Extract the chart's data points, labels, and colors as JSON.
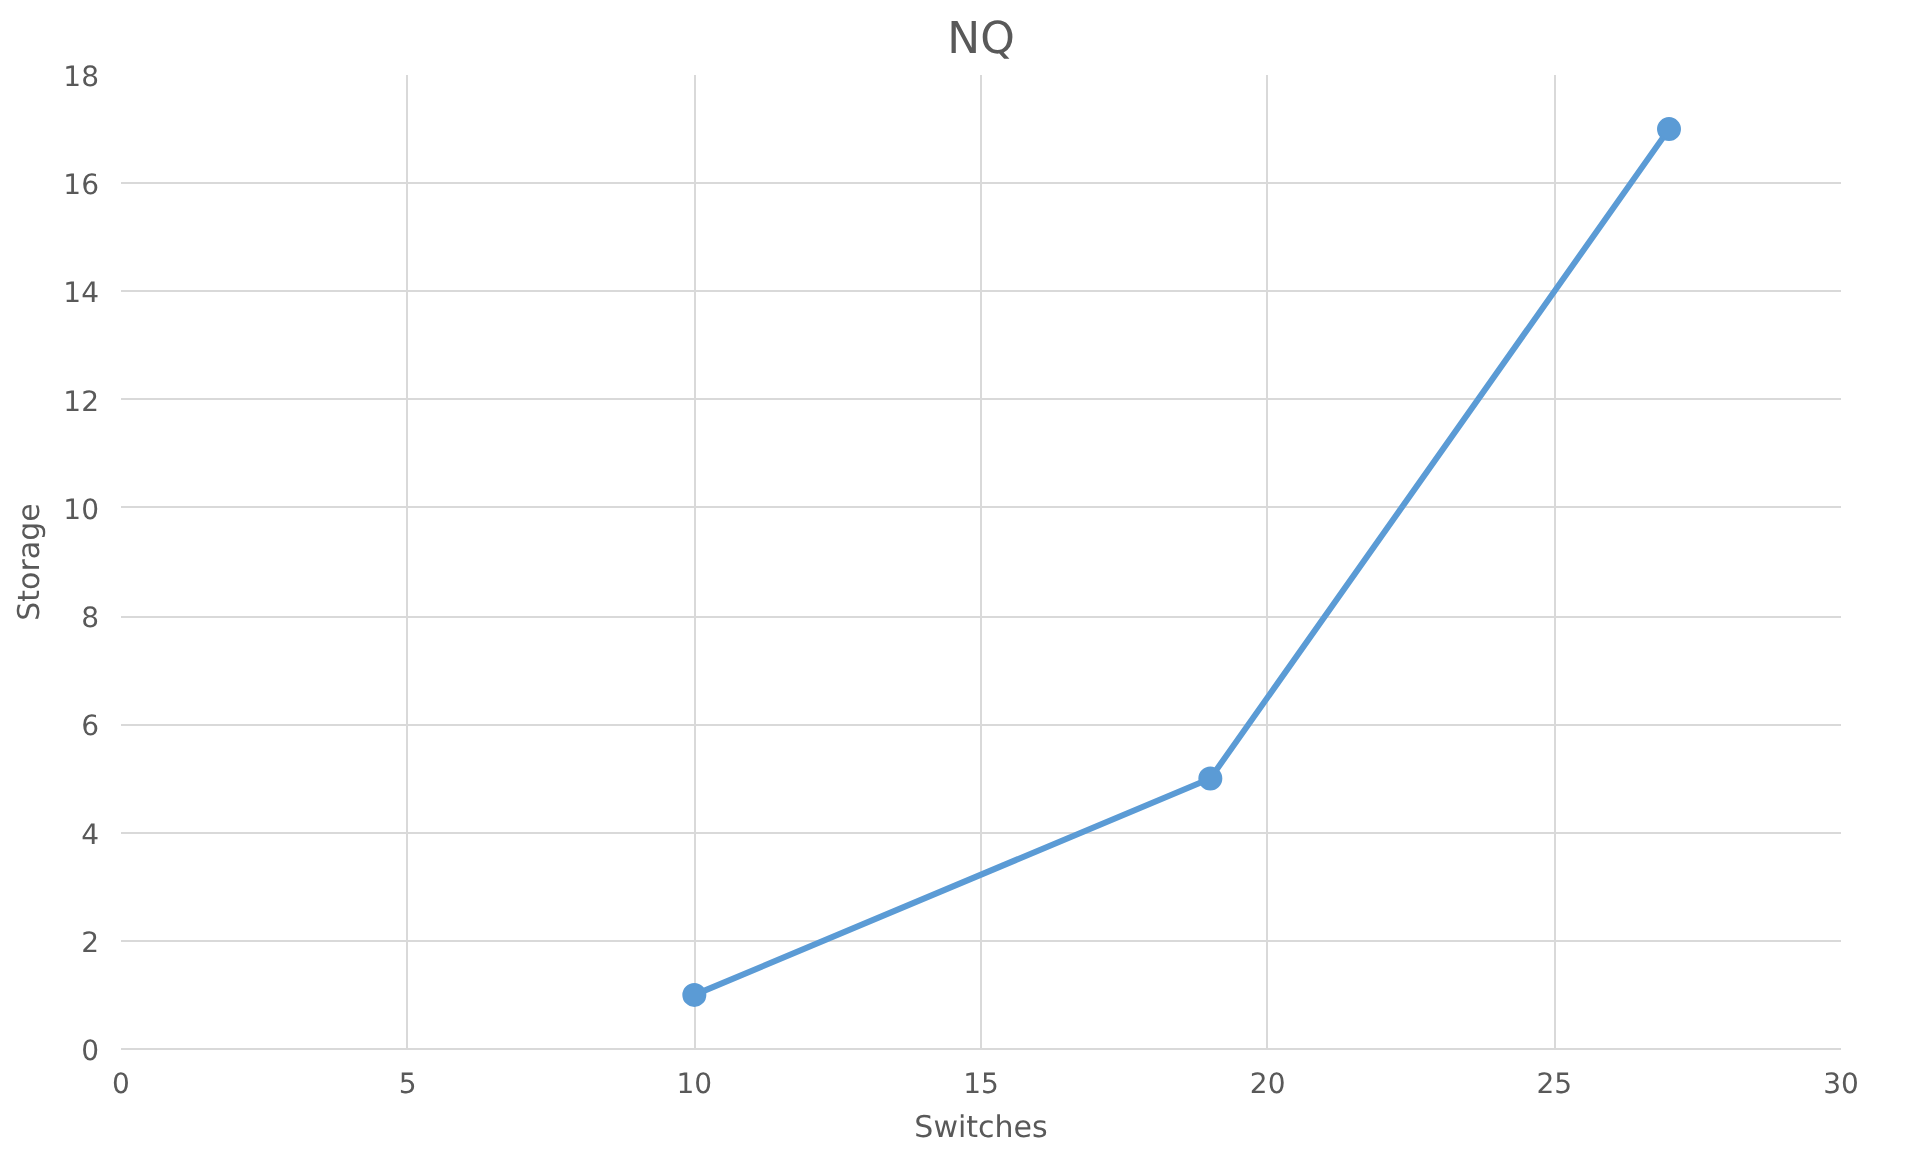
{
  "chart_data": {
    "type": "line",
    "title": "NQ",
    "xlabel": "Switches",
    "ylabel": "Storage",
    "x": [
      10,
      19,
      27
    ],
    "series": [
      {
        "color": "#5b9bd5",
        "values": [
          1,
          5,
          17
        ]
      }
    ],
    "xlim": [
      0,
      30
    ],
    "xticks": [
      0,
      5,
      10,
      15,
      20,
      25,
      30
    ],
    "ylim": [
      0,
      18
    ],
    "yticks": [
      0,
      2,
      4,
      6,
      8,
      10,
      12,
      14,
      16,
      18
    ],
    "grid": true,
    "marker": "circle",
    "line_style": "solid"
  }
}
